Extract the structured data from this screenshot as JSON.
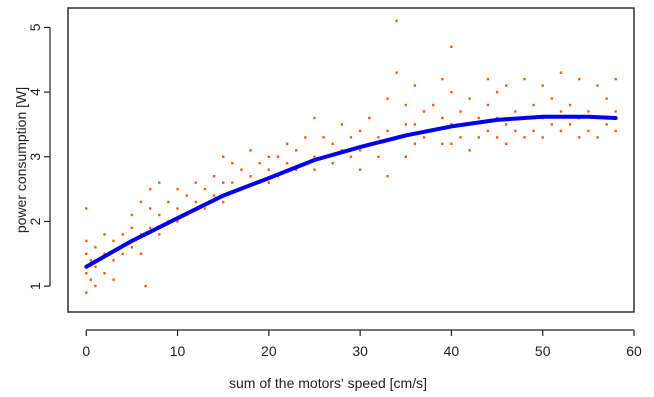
{
  "chart_data": {
    "type": "scatter",
    "title": "",
    "xlabel": "sum of the motors' speed [cm/s]",
    "ylabel": "power consumption [W]",
    "xlim": [
      -2,
      60
    ],
    "ylim": [
      0.6,
      5.3
    ],
    "x_ticks": [
      0,
      10,
      20,
      30,
      40,
      50,
      60
    ],
    "y_ticks": [
      1,
      2,
      3,
      4,
      5
    ],
    "grid": false,
    "legend": "none",
    "colors": {
      "points": "#ff5a0a",
      "fit": "#0000ee",
      "axes": "#222222"
    },
    "point_samples": [
      [
        0,
        0.9
      ],
      [
        0,
        1.2
      ],
      [
        0,
        1.5
      ],
      [
        0,
        1.7
      ],
      [
        0,
        2.2
      ],
      [
        0.5,
        1.1
      ],
      [
        0.5,
        1.4
      ],
      [
        1,
        1.0
      ],
      [
        1,
        1.3
      ],
      [
        1,
        1.6
      ],
      [
        2,
        1.2
      ],
      [
        2,
        1.5
      ],
      [
        2,
        1.8
      ],
      [
        3,
        1.1
      ],
      [
        3,
        1.4
      ],
      [
        3,
        1.7
      ],
      [
        4,
        1.5
      ],
      [
        4,
        1.8
      ],
      [
        5,
        1.6
      ],
      [
        5,
        1.9
      ],
      [
        5,
        2.1
      ],
      [
        6,
        1.5
      ],
      [
        6,
        1.8
      ],
      [
        6,
        2.3
      ],
      [
        6.5,
        1.0
      ],
      [
        7,
        1.9
      ],
      [
        7,
        2.2
      ],
      [
        7,
        2.5
      ],
      [
        8,
        1.8
      ],
      [
        8,
        2.1
      ],
      [
        8,
        2.6
      ],
      [
        9,
        2.0
      ],
      [
        9,
        2.3
      ],
      [
        10,
        2.0
      ],
      [
        10,
        2.2
      ],
      [
        10,
        2.5
      ],
      [
        11,
        2.1
      ],
      [
        11,
        2.4
      ],
      [
        12,
        2.3
      ],
      [
        12,
        2.6
      ],
      [
        13,
        2.2
      ],
      [
        13,
        2.5
      ],
      [
        14,
        2.4
      ],
      [
        14,
        2.7
      ],
      [
        15,
        2.3
      ],
      [
        15,
        2.6
      ],
      [
        15,
        3.0
      ],
      [
        16,
        2.6
      ],
      [
        16,
        2.9
      ],
      [
        17,
        2.5
      ],
      [
        17,
        2.8
      ],
      [
        18,
        2.7
      ],
      [
        18,
        3.1
      ],
      [
        19,
        2.6
      ],
      [
        19,
        2.9
      ],
      [
        20,
        2.6
      ],
      [
        20,
        2.8
      ],
      [
        20,
        3.0
      ],
      [
        21,
        2.7
      ],
      [
        21,
        3.0
      ],
      [
        22,
        2.9
      ],
      [
        22,
        3.2
      ],
      [
        23,
        2.8
      ],
      [
        23,
        3.1
      ],
      [
        24,
        2.9
      ],
      [
        24,
        3.3
      ],
      [
        25,
        2.8
      ],
      [
        25,
        3.0
      ],
      [
        25,
        3.6
      ],
      [
        26,
        3.0
      ],
      [
        26,
        3.3
      ],
      [
        27,
        2.9
      ],
      [
        27,
        3.2
      ],
      [
        28,
        3.1
      ],
      [
        28,
        3.5
      ],
      [
        29,
        3.0
      ],
      [
        29,
        3.3
      ],
      [
        30,
        2.8
      ],
      [
        30,
        3.1
      ],
      [
        30,
        3.4
      ],
      [
        31,
        3.2
      ],
      [
        31,
        3.6
      ],
      [
        32,
        3.0
      ],
      [
        32,
        3.3
      ],
      [
        33,
        2.7
      ],
      [
        33,
        3.4
      ],
      [
        33,
        3.9
      ],
      [
        34,
        3.3
      ],
      [
        34,
        4.3
      ],
      [
        34,
        5.1
      ],
      [
        35,
        3.0
      ],
      [
        35,
        3.5
      ],
      [
        35,
        3.8
      ],
      [
        36,
        3.2
      ],
      [
        36,
        3.5
      ],
      [
        36,
        4.1
      ],
      [
        37,
        3.3
      ],
      [
        37,
        3.7
      ],
      [
        38,
        3.4
      ],
      [
        38,
        3.8
      ],
      [
        39,
        3.2
      ],
      [
        39,
        3.6
      ],
      [
        39,
        4.2
      ],
      [
        40,
        3.2
      ],
      [
        40,
        3.5
      ],
      [
        40,
        4.0
      ],
      [
        40,
        4.7
      ],
      [
        41,
        3.3
      ],
      [
        41,
        3.7
      ],
      [
        42,
        3.1
      ],
      [
        42,
        3.5
      ],
      [
        42,
        3.9
      ],
      [
        43,
        3.3
      ],
      [
        43,
        3.6
      ],
      [
        44,
        3.4
      ],
      [
        44,
        3.8
      ],
      [
        44,
        4.2
      ],
      [
        45,
        3.3
      ],
      [
        45,
        3.6
      ],
      [
        45,
        4.0
      ],
      [
        46,
        3.2
      ],
      [
        46,
        3.5
      ],
      [
        46,
        4.1
      ],
      [
        47,
        3.4
      ],
      [
        47,
        3.7
      ],
      [
        48,
        3.3
      ],
      [
        48,
        3.6
      ],
      [
        48,
        4.2
      ],
      [
        49,
        3.4
      ],
      [
        49,
        3.8
      ],
      [
        50,
        3.3
      ],
      [
        50,
        3.6
      ],
      [
        50,
        4.1
      ],
      [
        51,
        3.5
      ],
      [
        51,
        3.9
      ],
      [
        52,
        3.4
      ],
      [
        52,
        3.7
      ],
      [
        52,
        4.3
      ],
      [
        53,
        3.5
      ],
      [
        53,
        3.8
      ],
      [
        54,
        3.3
      ],
      [
        54,
        3.6
      ],
      [
        54,
        4.2
      ],
      [
        55,
        3.4
      ],
      [
        55,
        3.7
      ],
      [
        56,
        3.3
      ],
      [
        56,
        3.6
      ],
      [
        56,
        4.1
      ],
      [
        57,
        3.5
      ],
      [
        57,
        3.9
      ],
      [
        58,
        3.4
      ],
      [
        58,
        3.7
      ],
      [
        58,
        4.2
      ]
    ],
    "fit_curve": {
      "name": "",
      "x": [
        0,
        5,
        10,
        15,
        20,
        25,
        30,
        35,
        40,
        45,
        50,
        55,
        58
      ],
      "y": [
        1.3,
        1.7,
        2.05,
        2.4,
        2.67,
        2.95,
        3.15,
        3.33,
        3.47,
        3.57,
        3.62,
        3.62,
        3.6
      ]
    }
  }
}
